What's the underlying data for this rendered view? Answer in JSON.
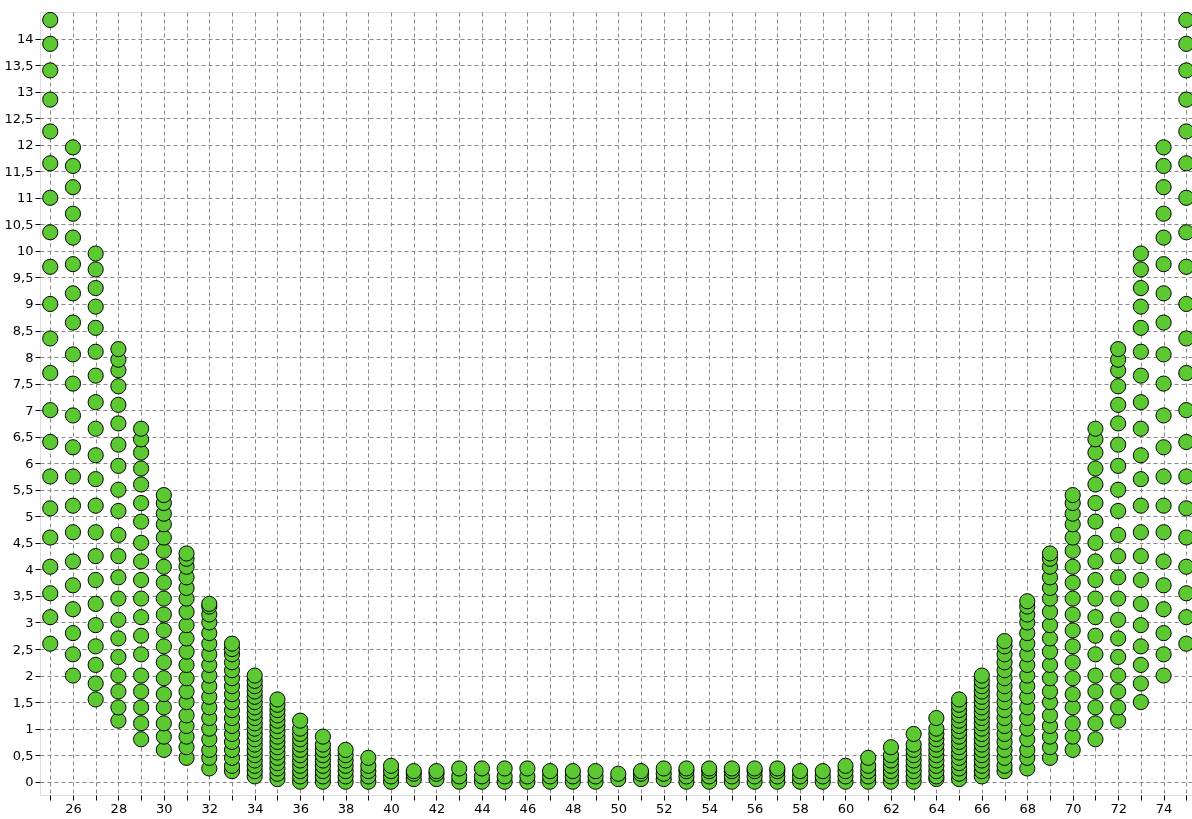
{
  "chart_data": {
    "type": "scatter",
    "color": "#5cc932",
    "marker": "circle",
    "grid": true,
    "xlim": [
      24.55,
      75.25
    ],
    "ylim": [
      -0.25,
      14.5
    ],
    "xticks": [
      {
        "value": 25,
        "label": null
      },
      26,
      {
        "value": 27,
        "label": null
      },
      28,
      {
        "value": 29,
        "label": null
      },
      30,
      {
        "value": 31,
        "label": null
      },
      32,
      {
        "value": 33,
        "label": null
      },
      34,
      {
        "value": 35,
        "label": null
      },
      36,
      {
        "value": 37,
        "label": null
      },
      38,
      {
        "value": 39,
        "label": null
      },
      40,
      {
        "value": 41,
        "label": null
      },
      42,
      {
        "value": 43,
        "label": null
      },
      44,
      {
        "value": 45,
        "label": null
      },
      46,
      {
        "value": 47,
        "label": null
      },
      48,
      {
        "value": 49,
        "label": null
      },
      50,
      {
        "value": 51,
        "label": null
      },
      52,
      {
        "value": 53,
        "label": null
      },
      54,
      {
        "value": 55,
        "label": null
      },
      56,
      {
        "value": 57,
        "label": null
      },
      58,
      {
        "value": 59,
        "label": null
      },
      60,
      {
        "value": 61,
        "label": null
      },
      62,
      {
        "value": 63,
        "label": null
      },
      64,
      {
        "value": 65,
        "label": null
      },
      66,
      {
        "value": 67,
        "label": null
      },
      68,
      {
        "value": 69,
        "label": null
      },
      70,
      {
        "value": 71,
        "label": null
      },
      72,
      {
        "value": 73,
        "label": null
      },
      74,
      {
        "value": 75,
        "label": null
      }
    ],
    "yticks": [
      0,
      {
        "value": 0.5,
        "label": "0,5"
      },
      1,
      {
        "value": 1.5,
        "label": "1,5"
      },
      2,
      {
        "value": 2.5,
        "label": "2,5"
      },
      3,
      {
        "value": 3.5,
        "label": "3,5"
      },
      4,
      {
        "value": 4.5,
        "label": "4,5"
      },
      5,
      {
        "value": 5.5,
        "label": "5,5"
      },
      6,
      {
        "value": 6.5,
        "label": "6,5"
      },
      7,
      {
        "value": 7.5,
        "label": "7,5"
      },
      8,
      {
        "value": 8.5,
        "label": "8,5"
      },
      9,
      {
        "value": 9.5,
        "label": "9,5"
      },
      10,
      {
        "value": 10.5,
        "label": "10,5"
      },
      11,
      {
        "value": 11.5,
        "label": "11,5"
      },
      12,
      {
        "value": 12.5,
        "label": "12,5"
      },
      13,
      {
        "value": 13.5,
        "label": "13,5"
      },
      14
    ],
    "x": [
      25,
      25,
      25,
      25,
      25,
      25,
      25,
      25,
      25,
      25,
      25,
      25,
      25,
      25,
      25,
      25,
      25,
      25,
      25,
      25,
      25,
      26,
      26,
      26,
      26,
      26,
      26,
      26,
      26,
      26,
      26,
      26,
      26,
      26,
      26,
      26,
      26,
      26,
      26,
      26,
      26,
      26,
      27,
      27,
      27,
      27,
      27,
      27,
      27,
      27,
      27,
      27,
      27,
      27,
      27,
      27,
      27,
      27,
      27,
      27,
      27,
      27,
      27,
      28,
      28,
      28,
      28,
      28,
      28,
      28,
      28,
      28,
      28,
      28,
      28,
      28,
      28,
      28,
      28,
      28,
      28,
      28,
      28,
      28,
      29,
      29,
      29,
      29,
      29,
      29,
      29,
      29,
      29,
      29,
      29,
      29,
      29,
      29,
      29,
      29,
      29,
      29,
      29,
      30,
      30,
      30,
      30,
      30,
      30,
      30,
      30,
      30,
      30,
      30,
      30,
      30,
      30,
      30,
      30,
      30,
      30,
      30,
      31,
      31,
      31,
      31,
      31,
      31,
      31,
      31,
      31,
      31,
      31,
      31,
      31,
      31,
      31,
      31,
      31,
      31,
      31,
      32,
      32,
      32,
      32,
      32,
      32,
      32,
      32,
      32,
      32,
      32,
      32,
      32,
      32,
      32,
      32,
      32,
      32,
      33,
      33,
      33,
      33,
      33,
      33,
      33,
      33,
      33,
      33,
      33,
      33,
      33,
      33,
      33,
      33,
      33,
      33,
      34,
      34,
      34,
      34,
      34,
      34,
      34,
      34,
      34,
      34,
      34,
      34,
      34,
      34,
      34,
      34,
      34,
      34,
      34,
      34,
      35,
      35,
      35,
      35,
      35,
      35,
      35,
      35,
      35,
      35,
      35,
      35,
      35,
      35,
      35,
      35,
      36,
      36,
      36,
      36,
      36,
      36,
      36,
      36,
      36,
      36,
      36,
      36,
      37,
      37,
      37,
      37,
      37,
      37,
      37,
      37,
      37,
      38,
      38,
      38,
      38,
      38,
      38,
      38,
      39,
      39,
      39,
      39,
      39,
      40,
      40,
      40,
      40,
      41,
      41,
      41,
      42,
      42,
      42,
      43,
      43,
      43,
      44,
      44,
      44,
      45,
      45,
      45,
      46,
      46,
      46,
      47,
      47,
      47,
      48,
      48,
      48,
      49,
      49,
      49,
      50,
      50,
      51,
      51,
      51,
      52,
      52,
      52,
      53,
      53,
      53,
      53,
      54,
      54,
      54,
      54,
      55,
      55,
      55,
      55,
      56,
      56,
      56,
      56,
      57,
      57,
      57,
      57,
      58,
      58,
      58,
      59,
      59,
      59,
      60,
      60,
      60,
      60,
      61,
      61,
      61,
      61,
      61,
      62,
      62,
      62,
      62,
      62,
      62,
      62,
      63,
      63,
      63,
      63,
      63,
      63,
      63,
      63,
      63,
      64,
      64,
      64,
      64,
      64,
      64,
      64,
      64,
      64,
      64,
      64,
      64,
      65,
      65,
      65,
      65,
      65,
      65,
      65,
      65,
      65,
      65,
      65,
      65,
      65,
      65,
      65,
      65,
      66,
      66,
      66,
      66,
      66,
      66,
      66,
      66,
      66,
      66,
      66,
      66,
      66,
      66,
      66,
      66,
      66,
      66,
      66,
      66,
      67,
      67,
      67,
      67,
      67,
      67,
      67,
      67,
      67,
      67,
      67,
      67,
      67,
      67,
      67,
      67,
      67,
      67,
      68,
      68,
      68,
      68,
      68,
      68,
      68,
      68,
      68,
      68,
      68,
      68,
      68,
      68,
      68,
      68,
      68,
      68,
      69,
      69,
      69,
      69,
      69,
      69,
      69,
      69,
      69,
      69,
      69,
      69,
      69,
      69,
      69,
      69,
      69,
      69,
      69,
      70,
      70,
      70,
      70,
      70,
      70,
      70,
      70,
      70,
      70,
      70,
      70,
      70,
      70,
      70,
      70,
      70,
      70,
      70,
      71,
      71,
      71,
      71,
      71,
      71,
      71,
      71,
      71,
      71,
      71,
      71,
      71,
      71,
      71,
      71,
      71,
      71,
      71,
      72,
      72,
      72,
      72,
      72,
      72,
      72,
      72,
      72,
      72,
      72,
      72,
      72,
      72,
      72,
      72,
      72,
      72,
      72,
      72,
      72,
      73,
      73,
      73,
      73,
      73,
      73,
      73,
      73,
      73,
      73,
      73,
      73,
      73,
      73,
      73,
      73,
      73,
      73,
      73,
      73,
      73,
      74,
      74,
      74,
      74,
      74,
      74,
      74,
      74,
      74,
      74,
      74,
      74,
      74,
      74,
      74,
      74,
      74,
      74,
      74,
      74,
      74,
      75,
      75,
      75,
      75,
      75,
      75,
      75,
      75,
      75,
      75,
      75,
      75,
      75,
      75,
      75,
      75,
      75,
      75,
      75,
      75,
      75
    ],
    "values": [
      2.6,
      3.1,
      3.55,
      4.05,
      4.6,
      5.15,
      5.75,
      6.4,
      7.0,
      7.7,
      8.35,
      9.0,
      9.7,
      10.35,
      11.0,
      11.65,
      12.25,
      12.85,
      13.4,
      13.9,
      14.35,
      2.0,
      2.4,
      2.8,
      3.25,
      3.7,
      4.15,
      4.7,
      5.2,
      5.75,
      6.3,
      6.9,
      7.5,
      8.05,
      8.65,
      9.2,
      9.75,
      10.25,
      10.7,
      11.2,
      11.6,
      11.95,
      1.55,
      1.85,
      2.2,
      2.55,
      2.95,
      3.35,
      3.8,
      4.25,
      4.7,
      5.2,
      5.7,
      6.15,
      6.65,
      7.15,
      7.65,
      8.1,
      8.55,
      8.95,
      9.3,
      9.65,
      9.95,
      1.15,
      1.4,
      1.7,
      2.0,
      2.35,
      2.7,
      3.05,
      3.45,
      3.85,
      4.25,
      4.65,
      5.1,
      5.5,
      5.95,
      6.35,
      6.75,
      7.1,
      7.45,
      7.75,
      7.95,
      8.15,
      0.8,
      1.1,
      1.4,
      1.7,
      2.0,
      2.4,
      2.75,
      3.1,
      3.45,
      3.8,
      4.15,
      4.5,
      4.9,
      5.25,
      5.6,
      5.9,
      6.2,
      6.45,
      6.65,
      0.6,
      0.85,
      1.1,
      1.4,
      1.65,
      1.95,
      2.25,
      2.55,
      2.85,
      3.15,
      3.45,
      3.75,
      4.05,
      4.35,
      4.6,
      4.85,
      5.05,
      5.25,
      5.4,
      0.45,
      0.65,
      0.85,
      1.05,
      1.25,
      1.5,
      1.7,
      1.95,
      2.2,
      2.45,
      2.7,
      2.95,
      3.2,
      3.45,
      3.65,
      3.85,
      4.05,
      4.2,
      4.3,
      0.25,
      0.45,
      0.6,
      0.8,
      1.0,
      1.2,
      1.4,
      1.6,
      1.8,
      2.0,
      2.2,
      2.4,
      2.6,
      2.8,
      3.0,
      3.15,
      3.3,
      3.35,
      0.2,
      0.3,
      0.45,
      0.6,
      0.75,
      0.9,
      1.05,
      1.2,
      1.35,
      1.5,
      1.65,
      1.8,
      1.95,
      2.1,
      2.25,
      2.4,
      2.5,
      2.6,
      0.1,
      0.2,
      0.3,
      0.4,
      0.5,
      0.6,
      0.7,
      0.8,
      0.9,
      1.0,
      1.1,
      1.2,
      1.3,
      1.4,
      1.5,
      1.6,
      1.7,
      1.8,
      1.9,
      2.0,
      0.05,
      0.15,
      0.25,
      0.35,
      0.45,
      0.55,
      0.65,
      0.75,
      0.85,
      0.95,
      1.05,
      1.15,
      1.25,
      1.35,
      1.45,
      1.55,
      0.0,
      0.1,
      0.2,
      0.3,
      0.4,
      0.5,
      0.6,
      0.7,
      0.8,
      0.9,
      1.0,
      1.15,
      0.0,
      0.1,
      0.2,
      0.3,
      0.4,
      0.5,
      0.6,
      0.7,
      0.85,
      0.0,
      0.1,
      0.2,
      0.3,
      0.4,
      0.5,
      0.6,
      0.0,
      0.1,
      0.2,
      0.3,
      0.45,
      0.0,
      0.1,
      0.2,
      0.3,
      0.05,
      0.15,
      0.2,
      0.05,
      0.15,
      0.2,
      0.0,
      0.1,
      0.25,
      0.0,
      0.1,
      0.25,
      0.0,
      0.1,
      0.25,
      0.0,
      0.1,
      0.25,
      0.0,
      0.1,
      0.2,
      0.0,
      0.1,
      0.2,
      0.0,
      0.1,
      0.2,
      0.05,
      0.15,
      0.05,
      0.15,
      0.2,
      0.05,
      0.15,
      0.25,
      0.0,
      0.1,
      0.2,
      0.25,
      0.0,
      0.1,
      0.2,
      0.25,
      0.0,
      0.1,
      0.2,
      0.25,
      0.0,
      0.1,
      0.2,
      0.25,
      0.0,
      0.1,
      0.2,
      0.25,
      0.0,
      0.1,
      0.2,
      0.0,
      0.1,
      0.2,
      0.0,
      0.1,
      0.2,
      0.3,
      0.0,
      0.1,
      0.2,
      0.3,
      0.45,
      0.0,
      0.1,
      0.2,
      0.3,
      0.4,
      0.5,
      0.65,
      0.0,
      0.1,
      0.2,
      0.3,
      0.4,
      0.5,
      0.6,
      0.7,
      0.9,
      0.05,
      0.1,
      0.2,
      0.3,
      0.4,
      0.5,
      0.6,
      0.7,
      0.8,
      0.9,
      1.0,
      1.2,
      0.05,
      0.15,
      0.25,
      0.35,
      0.45,
      0.55,
      0.65,
      0.75,
      0.85,
      0.95,
      1.05,
      1.15,
      1.25,
      1.35,
      1.45,
      1.55,
      0.1,
      0.2,
      0.3,
      0.4,
      0.5,
      0.6,
      0.7,
      0.8,
      0.9,
      1.0,
      1.1,
      1.2,
      1.3,
      1.4,
      1.5,
      1.6,
      1.7,
      1.8,
      1.9,
      2.0,
      0.2,
      0.3,
      0.45,
      0.6,
      0.75,
      0.9,
      1.05,
      1.2,
      1.35,
      1.5,
      1.65,
      1.8,
      1.95,
      2.1,
      2.25,
      2.4,
      2.55,
      2.65,
      0.25,
      0.45,
      0.6,
      0.8,
      1.0,
      1.2,
      1.4,
      1.6,
      1.8,
      2.0,
      2.2,
      2.4,
      2.6,
      2.8,
      3.0,
      3.15,
      3.3,
      3.4,
      0.45,
      0.65,
      0.85,
      1.05,
      1.25,
      1.5,
      1.7,
      1.95,
      2.2,
      2.45,
      2.7,
      2.95,
      3.2,
      3.45,
      3.65,
      3.85,
      4.05,
      4.2,
      4.3,
      0.6,
      0.85,
      1.1,
      1.4,
      1.65,
      1.95,
      2.25,
      2.55,
      2.85,
      3.15,
      3.45,
      3.75,
      4.05,
      4.35,
      4.6,
      4.85,
      5.05,
      5.25,
      5.4,
      0.8,
      1.1,
      1.4,
      1.7,
      2.0,
      2.4,
      2.75,
      3.1,
      3.45,
      3.8,
      4.15,
      4.5,
      4.9,
      5.25,
      5.6,
      5.9,
      6.2,
      6.45,
      6.65,
      1.15,
      1.4,
      1.7,
      2.0,
      2.35,
      2.7,
      3.05,
      3.45,
      3.85,
      4.25,
      4.65,
      5.1,
      5.5,
      5.95,
      6.35,
      6.75,
      7.1,
      7.45,
      7.75,
      7.95,
      8.15,
      1.5,
      1.85,
      2.2,
      2.55,
      2.95,
      3.35,
      3.8,
      4.25,
      4.7,
      5.2,
      5.7,
      6.15,
      6.65,
      7.15,
      7.65,
      8.1,
      8.55,
      8.95,
      9.3,
      9.65,
      9.95,
      2.0,
      2.4,
      2.8,
      3.25,
      3.7,
      4.15,
      4.7,
      5.2,
      5.75,
      6.3,
      6.9,
      7.5,
      8.05,
      8.65,
      9.2,
      9.75,
      10.25,
      10.7,
      11.2,
      11.6,
      11.95,
      2.6,
      3.1,
      3.55,
      4.05,
      4.6,
      5.15,
      5.75,
      6.4,
      7.0,
      7.7,
      8.35,
      9.0,
      9.7,
      10.35,
      11.0,
      11.65,
      12.25,
      12.85,
      13.4,
      13.9,
      14.35
    ]
  }
}
